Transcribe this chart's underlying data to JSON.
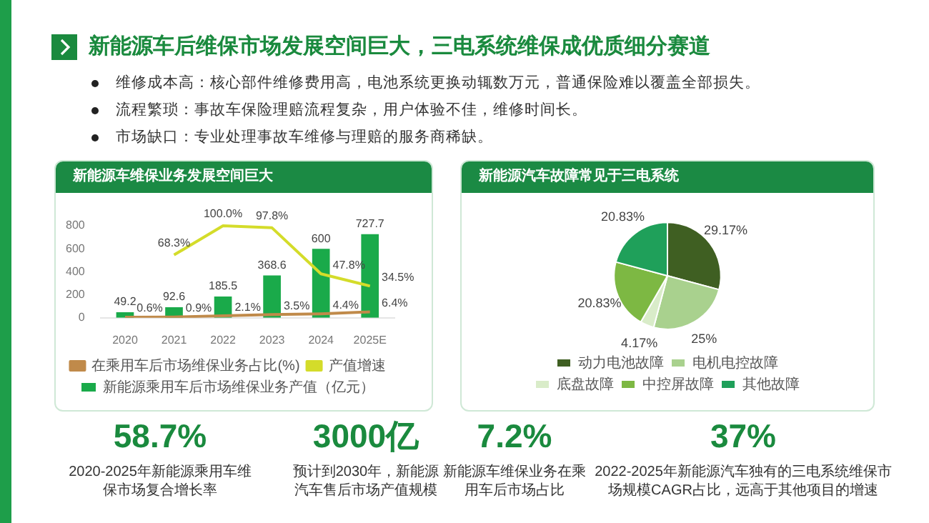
{
  "chart_data": [
    {
      "type": "other",
      "title": "新能源车后维保市场发展空间巨大，三电系统维保成优质细分赛道",
      "annotations": [
        "维修成本高：核心部件维修费用高，电池系统更换动辄数万元，普通保险难以覆盖全部损失。",
        "流程繁琐：事故车保险理赔流程复杂，用户体验不佳，维修时间长。",
        "市场缺口：专业处理事故车维修与理赔的服务商稀缺。"
      ]
    },
    {
      "type": "bar",
      "title": "新能源车维保业务发展空间巨大",
      "categories": [
        "2020",
        "2021",
        "2022",
        "2023",
        "2024",
        "2025E"
      ],
      "ylim": [
        0,
        800
      ],
      "yticks": [
        0,
        200,
        400,
        600,
        800
      ],
      "legend": "bottom",
      "series": [
        {
          "name": "新能源乘用车后市场维保业务产值（亿元）",
          "color": "#1aaa4a",
          "values": [
            49.2,
            92.6,
            185.5,
            368.6,
            600,
            727.7
          ],
          "value_labels": [
            "49.2",
            "92.6",
            "185.5",
            "368.6",
            "600",
            "727.7"
          ]
        },
        {
          "name": "在乘用车后市场维保业务占比(%)",
          "type": "line",
          "axis": "y2",
          "color": "#c08a4a",
          "values": [
            0.6,
            0.9,
            2.1,
            3.5,
            4.4,
            6.4
          ],
          "value_labels": [
            "0.6%",
            "0.9%",
            "2.1%",
            "3.5%",
            "4.4%",
            "6.4%"
          ]
        },
        {
          "name": "产值增速",
          "type": "line",
          "axis": "y2",
          "color": "#d4dc2a",
          "values": [
            null,
            68.3,
            100.0,
            97.8,
            47.8,
            34.5
          ],
          "value_labels": [
            null,
            "68.3%",
            "100.0%",
            "97.8%",
            "47.8%",
            "34.5%"
          ]
        }
      ]
    },
    {
      "type": "pie",
      "title": "新能源汽车故障常见于三电系统",
      "categories": [
        "动力电池故障",
        "电机电控故障",
        "底盘故障",
        "中控屏故障",
        "其他故障"
      ],
      "values": [
        29.17,
        25,
        4.17,
        20.83,
        20.83
      ],
      "colors": [
        "#3f5f22",
        "#a9d18e",
        "#d9ecc9",
        "#7db843",
        "#1fa05a"
      ],
      "value_labels": [
        "29.17%",
        "25%",
        "4.17%",
        "20.83%",
        "20.83%"
      ],
      "legend": "bottom"
    },
    {
      "type": "other",
      "annotations": [
        "58.7%",
        "2020-2025年新能源乘用车维保市场复合增长率",
        "3000亿",
        "预计到2030年，新能源汽车售后市场产值规模",
        "7.2%",
        "新能源车维保业务在乘用车后市场占比",
        "37%",
        "2022-2025年新能源汽车独有的三电系统维保市场规模CAGR占比，远高于其他项目的增速"
      ]
    }
  ]
}
